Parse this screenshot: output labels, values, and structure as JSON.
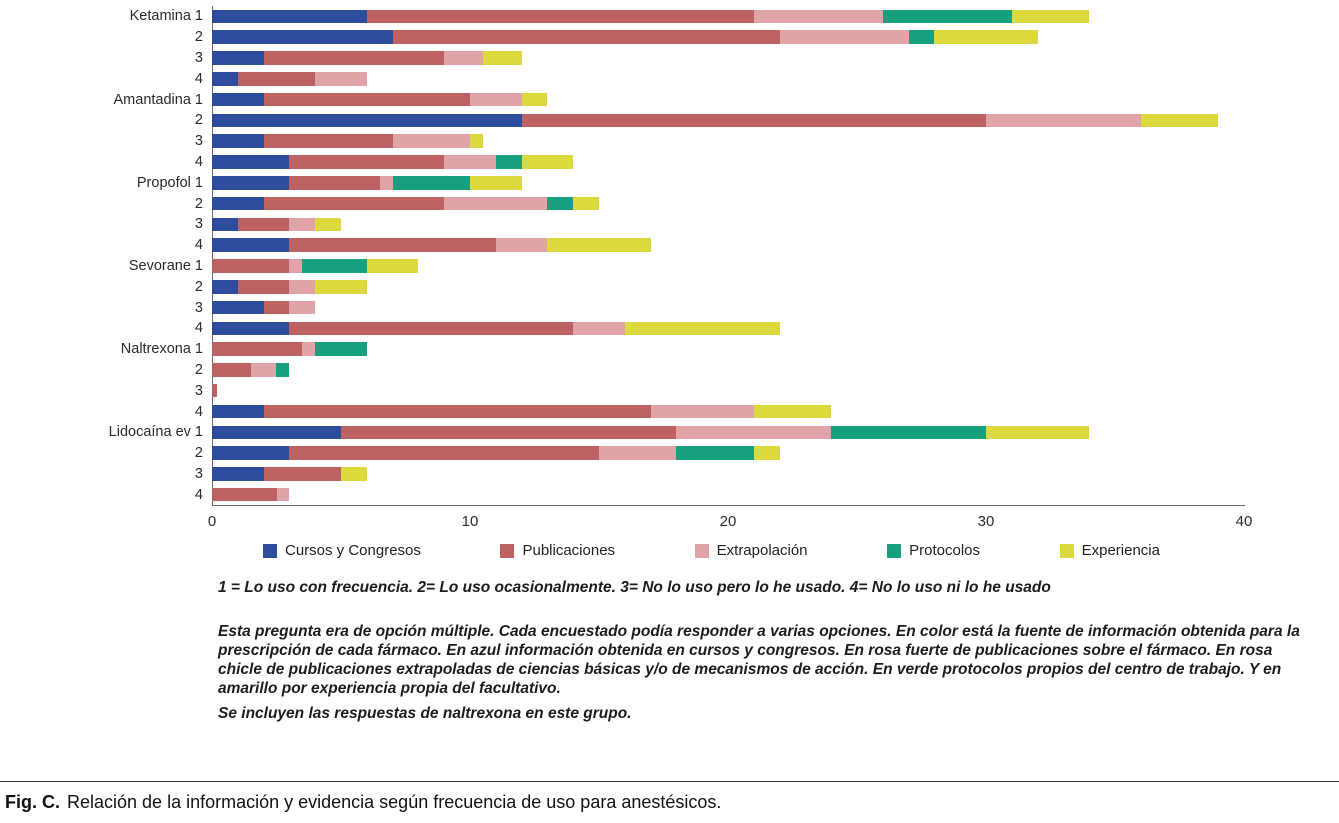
{
  "chart_data": {
    "type": "bar",
    "orientation": "horizontal",
    "stacked": true,
    "title": "",
    "xlabel": "",
    "ylabel": "",
    "xlim": [
      0,
      40
    ],
    "xticks": [
      0,
      10,
      20,
      30,
      40
    ],
    "grid": false,
    "legend_position": "bottom",
    "series_keys": [
      "cursos-y-congresos",
      "publicaciones",
      "extrapolacion",
      "protocolos",
      "experiencia"
    ],
    "legend": [
      "Cursos y Congresos",
      "Publicaciones",
      "Extrapolación",
      "Protocolos",
      "Experiencia"
    ],
    "colors": [
      "#2e4c9c",
      "#bd6163",
      "#dfa3a8",
      "#16a07e",
      "#dcd93f"
    ],
    "rows": [
      {
        "label": "Ketamina 1",
        "values": [
          6,
          15,
          5,
          5,
          3
        ]
      },
      {
        "label": "2",
        "values": [
          7,
          15,
          5,
          1,
          4
        ]
      },
      {
        "label": "3",
        "values": [
          2,
          7,
          1.5,
          0,
          1.5
        ]
      },
      {
        "label": "4",
        "values": [
          1,
          3,
          2,
          0,
          0
        ]
      },
      {
        "label": "Amantadina 1",
        "values": [
          2,
          8,
          2,
          0,
          1
        ]
      },
      {
        "label": "2",
        "values": [
          12,
          18,
          6,
          0,
          3
        ]
      },
      {
        "label": "3",
        "values": [
          2,
          5,
          3,
          0,
          0.5
        ]
      },
      {
        "label": "4",
        "values": [
          3,
          6,
          2,
          1,
          2
        ]
      },
      {
        "label": "Propofol 1",
        "values": [
          3,
          3.5,
          0.5,
          3,
          2
        ]
      },
      {
        "label": "2",
        "values": [
          2,
          7,
          4,
          1,
          1
        ]
      },
      {
        "label": "3",
        "values": [
          1,
          2,
          1,
          0,
          1
        ]
      },
      {
        "label": "4",
        "values": [
          3,
          8,
          2,
          0,
          4
        ]
      },
      {
        "label": "Sevorane 1",
        "values": [
          0,
          3,
          0.5,
          2.5,
          2
        ]
      },
      {
        "label": "2",
        "values": [
          1,
          2,
          1,
          0,
          2
        ]
      },
      {
        "label": "3",
        "values": [
          2,
          1,
          1,
          0,
          0
        ]
      },
      {
        "label": "4",
        "values": [
          3,
          11,
          2,
          0,
          6
        ]
      },
      {
        "label": "Naltrexona 1",
        "values": [
          0,
          3.5,
          0.5,
          2,
          0
        ]
      },
      {
        "label": "2",
        "values": [
          0,
          1.5,
          1,
          0.5,
          0
        ]
      },
      {
        "label": "3",
        "values": [
          0,
          0.2,
          0,
          0,
          0
        ]
      },
      {
        "label": "4",
        "values": [
          2,
          15,
          4,
          0,
          3
        ]
      },
      {
        "label": "Lidocaína ev 1",
        "values": [
          5,
          13,
          6,
          6,
          4
        ]
      },
      {
        "label": "2",
        "values": [
          3,
          12,
          3,
          3,
          1
        ]
      },
      {
        "label": "3",
        "values": [
          2,
          3,
          0,
          0,
          1
        ]
      },
      {
        "label": "4",
        "values": [
          0,
          2.5,
          0.5,
          0,
          0
        ]
      }
    ]
  },
  "notes": {
    "frequency_key": "1 = Lo uso con frecuencia. 2= Lo uso ocasionalmente. 3= No lo uso pero lo he usado. 4= No lo uso ni lo he usado",
    "paragraph": "Esta pregunta era de opción múltiple. Cada encuestado podía responder a varias opciones. En color está la fuente de información obtenida para la prescripción de cada fármaco. En azul información obtenida en cursos y congresos. En rosa fuerte de publicaciones sobre el fármaco. En rosa chicle de publicaciones extrapoladas de ciencias básicas y/o de mecanismos de acción. En verde protocolos propios del centro de trabajo. Y en amarillo por experiencia propia del facultativo.",
    "inclusion": "Se incluyen las respuestas de naltrexona en este grupo."
  },
  "caption": {
    "label": "Fig. C.",
    "text": "Relación de la información y evidencia según frecuencia de uso para anestésicos."
  }
}
